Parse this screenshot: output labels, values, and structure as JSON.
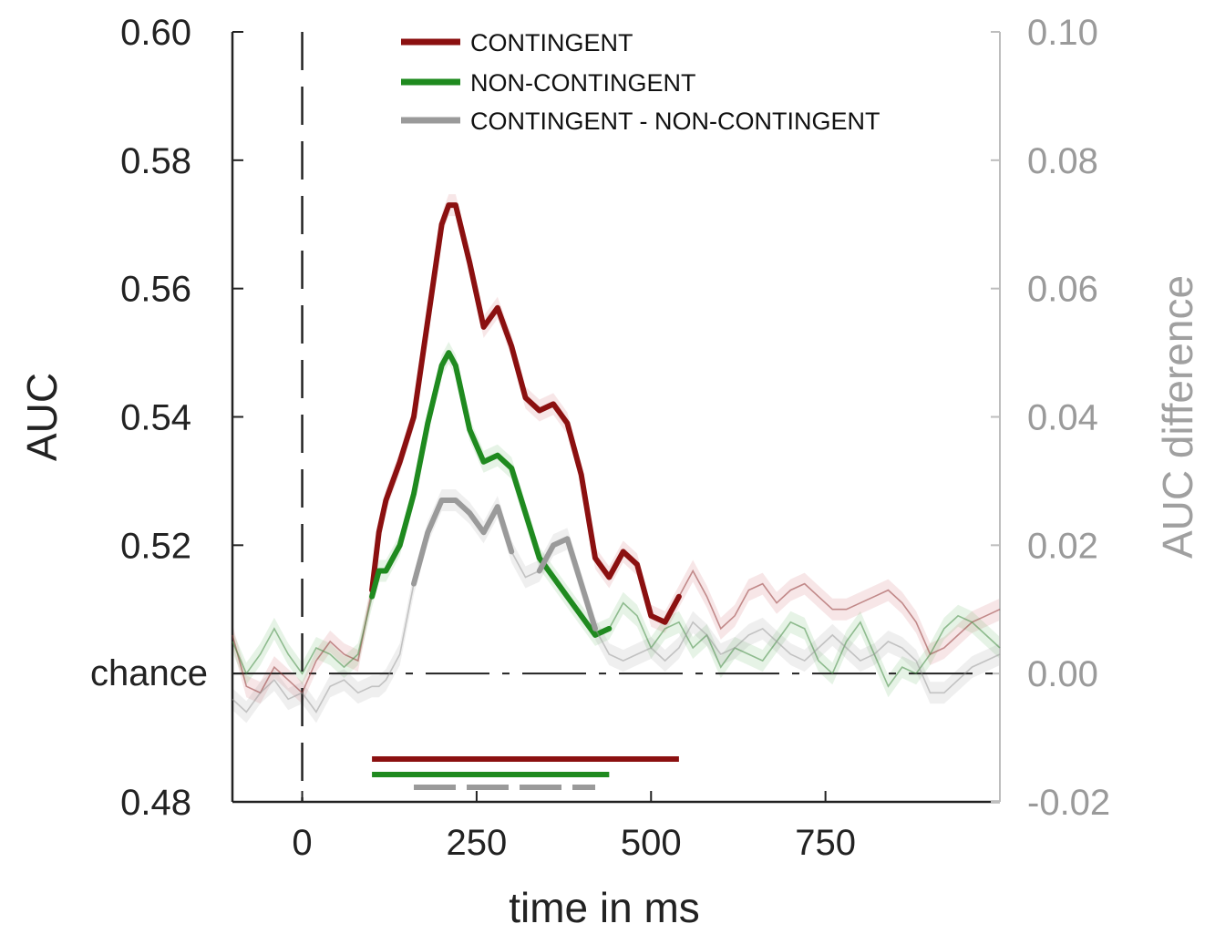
{
  "chart_data": {
    "type": "line",
    "xlabel": "time in ms",
    "ylabel": "AUC",
    "ylabel_right": "AUC difference",
    "xlim": [
      -100,
      1000
    ],
    "ylim": [
      0.48,
      0.6
    ],
    "ylim_right": [
      -0.02,
      0.1
    ],
    "x_ticks": [
      0,
      250,
      500,
      750
    ],
    "x_tick_labels": [
      "0",
      "250",
      "500",
      "750"
    ],
    "y_ticks": [
      0.48,
      0.52,
      0.54,
      0.56,
      0.58,
      0.6
    ],
    "y_tick_labels": [
      "0.48",
      "0.52",
      "0.54",
      "0.56",
      "0.58",
      "0.60"
    ],
    "chance_value": 0.5,
    "chance_label": "chance",
    "y_right_ticks": [
      -0.02,
      0.0,
      0.02,
      0.04,
      0.06,
      0.08,
      0.1
    ],
    "y_right_tick_labels": [
      "-0.02",
      "0.00",
      "0.02",
      "0.04",
      "0.06",
      "0.08",
      "0.10"
    ],
    "stimulus_onset_x": 0,
    "legend_position": "top",
    "colors": {
      "contingent": "#8b1010",
      "noncontingent": "#1f8a1f",
      "difference": "#9a9a9a"
    },
    "x": [
      -100,
      -80,
      -60,
      -40,
      -20,
      0,
      20,
      40,
      60,
      80,
      100,
      110,
      120,
      140,
      160,
      180,
      200,
      210,
      220,
      240,
      260,
      280,
      300,
      320,
      340,
      360,
      380,
      400,
      420,
      440,
      460,
      480,
      500,
      520,
      540,
      560,
      580,
      600,
      620,
      640,
      660,
      680,
      700,
      720,
      740,
      760,
      780,
      800,
      820,
      840,
      860,
      880,
      900,
      920,
      940,
      960,
      980,
      1000
    ],
    "series": [
      {
        "name": "CONTINGENT",
        "values": [
          0.506,
          0.498,
          0.497,
          0.501,
          0.499,
          0.497,
          0.502,
          0.505,
          0.503,
          0.502,
          0.513,
          0.522,
          0.527,
          0.533,
          0.54,
          0.555,
          0.57,
          0.573,
          0.573,
          0.564,
          0.554,
          0.557,
          0.551,
          0.543,
          0.541,
          0.542,
          0.539,
          0.531,
          0.518,
          0.515,
          0.519,
          0.517,
          0.509,
          0.508,
          0.512,
          0.516,
          0.512,
          0.507,
          0.509,
          0.513,
          0.514,
          0.511,
          0.513,
          0.514,
          0.512,
          0.51,
          0.51,
          0.511,
          0.512,
          0.513,
          0.511,
          0.508,
          0.503,
          0.504,
          0.506,
          0.508,
          0.509,
          0.51
        ],
        "significant_range": [
          100,
          540
        ]
      },
      {
        "name": "NON-CONTINGENT",
        "values": [
          0.505,
          0.5,
          0.503,
          0.507,
          0.503,
          0.5,
          0.504,
          0.503,
          0.501,
          0.503,
          0.512,
          0.516,
          0.516,
          0.52,
          0.528,
          0.539,
          0.548,
          0.55,
          0.548,
          0.538,
          0.533,
          0.534,
          0.532,
          0.525,
          0.518,
          0.515,
          0.512,
          0.509,
          0.506,
          0.507,
          0.511,
          0.509,
          0.504,
          0.507,
          0.508,
          0.504,
          0.506,
          0.501,
          0.504,
          0.503,
          0.502,
          0.505,
          0.508,
          0.507,
          0.502,
          0.5,
          0.505,
          0.508,
          0.503,
          0.498,
          0.501,
          0.5,
          0.503,
          0.507,
          0.509,
          0.508,
          0.506,
          0.504
        ],
        "significant_range": [
          100,
          440
        ]
      },
      {
        "name": "CONTINGENT - NON-CONTINGENT",
        "axis": "right",
        "values": [
          -0.004,
          -0.006,
          -0.003,
          -0.001,
          -0.004,
          -0.003,
          -0.006,
          -0.002,
          -0.001,
          -0.003,
          -0.002,
          -0.002,
          -0.001,
          0.003,
          0.014,
          0.022,
          0.027,
          0.027,
          0.027,
          0.025,
          0.022,
          0.026,
          0.019,
          0.015,
          0.016,
          0.02,
          0.021,
          0.014,
          0.007,
          0.003,
          0.002,
          0.003,
          0.004,
          0.002,
          0.004,
          0.008,
          0.006,
          0.003,
          0.004,
          0.006,
          0.007,
          0.005,
          0.003,
          0.002,
          0.004,
          0.006,
          0.004,
          0.002,
          0.003,
          0.005,
          0.004,
          0.002,
          -0.003,
          -0.003,
          -0.001,
          0.001,
          0.002,
          0.003
        ],
        "significant_ranges": [
          [
            160,
            310
          ],
          [
            340,
            420
          ]
        ]
      }
    ]
  }
}
